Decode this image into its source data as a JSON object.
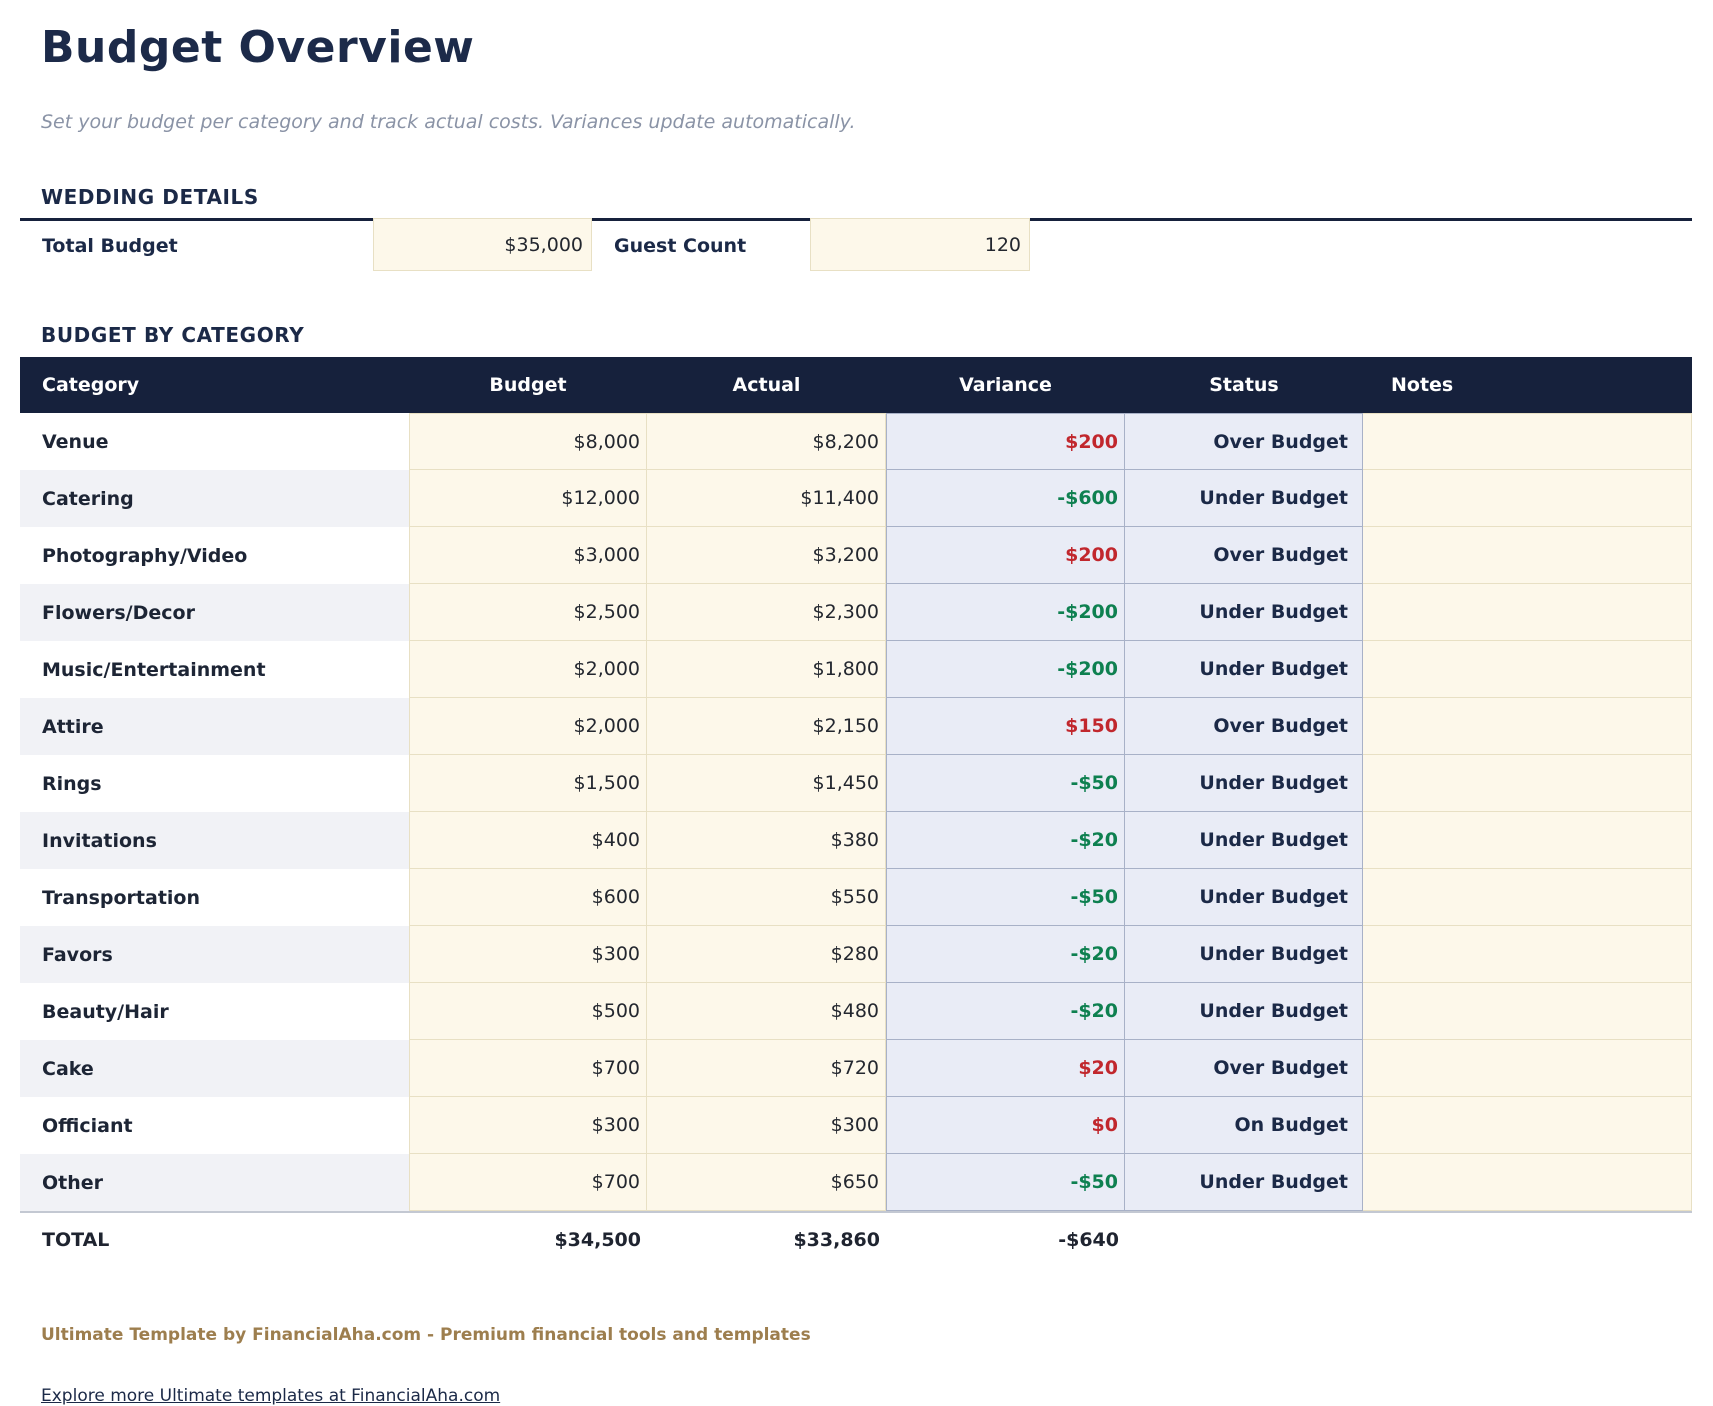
{
  "page": {
    "title": "Budget Overview",
    "subtitle": "Set your budget per category and track actual costs. Variances update automatically."
  },
  "wedding_details": {
    "section_title": "WEDDING DETAILS",
    "fields": [
      {
        "label": "Total Budget",
        "value": "$35,000"
      },
      {
        "label": "Guest Count",
        "value": "120"
      }
    ]
  },
  "budget_by_category": {
    "section_title": "BUDGET BY CATEGORY",
    "columns": [
      "Category",
      "Budget",
      "Actual",
      "Variance",
      "Status",
      "Notes"
    ],
    "rows": [
      {
        "category": "Venue",
        "budget": "$8,000",
        "actual": "$8,200",
        "variance": "$200",
        "status": "Over Budget",
        "notes": ""
      },
      {
        "category": "Catering",
        "budget": "$12,000",
        "actual": "$11,400",
        "variance": "-$600",
        "status": "Under Budget",
        "notes": ""
      },
      {
        "category": "Photography/Video",
        "budget": "$3,000",
        "actual": "$3,200",
        "variance": "$200",
        "status": "Over Budget",
        "notes": ""
      },
      {
        "category": "Flowers/Decor",
        "budget": "$2,500",
        "actual": "$2,300",
        "variance": "-$200",
        "status": "Under Budget",
        "notes": ""
      },
      {
        "category": "Music/Entertainment",
        "budget": "$2,000",
        "actual": "$1,800",
        "variance": "-$200",
        "status": "Under Budget",
        "notes": ""
      },
      {
        "category": "Attire",
        "budget": "$2,000",
        "actual": "$2,150",
        "variance": "$150",
        "status": "Over Budget",
        "notes": ""
      },
      {
        "category": "Rings",
        "budget": "$1,500",
        "actual": "$1,450",
        "variance": "-$50",
        "status": "Under Budget",
        "notes": ""
      },
      {
        "category": "Invitations",
        "budget": "$400",
        "actual": "$380",
        "variance": "-$20",
        "status": "Under Budget",
        "notes": ""
      },
      {
        "category": "Transportation",
        "budget": "$600",
        "actual": "$550",
        "variance": "-$50",
        "status": "Under Budget",
        "notes": ""
      },
      {
        "category": "Favors",
        "budget": "$300",
        "actual": "$280",
        "variance": "-$20",
        "status": "Under Budget",
        "notes": ""
      },
      {
        "category": "Beauty/Hair",
        "budget": "$500",
        "actual": "$480",
        "variance": "-$20",
        "status": "Under Budget",
        "notes": ""
      },
      {
        "category": "Cake",
        "budget": "$700",
        "actual": "$720",
        "variance": "$20",
        "status": "Over Budget",
        "notes": ""
      },
      {
        "category": "Officiant",
        "budget": "$300",
        "actual": "$300",
        "variance": "$0",
        "status": "On Budget",
        "notes": ""
      },
      {
        "category": "Other",
        "budget": "$700",
        "actual": "$650",
        "variance": "-$50",
        "status": "Under Budget",
        "notes": ""
      }
    ],
    "total": {
      "label": "TOTAL",
      "budget": "$34,500",
      "actual": "$33,860",
      "variance": "-$640",
      "notes": ""
    }
  },
  "footer": {
    "credit": "Ultimate Template by FinancialAha.com - Premium financial tools and templates",
    "link": "Explore more Ultimate templates at FinancialAha.com"
  },
  "colors": {
    "over_budget_red": "#c1272d",
    "under_budget_green": "#0e8050",
    "header_navy": "#16213c",
    "accent_navy": "#1b2947",
    "input_cell_bg": "#fdf8ea",
    "computed_cell_bg": "#e9ecf6"
  }
}
